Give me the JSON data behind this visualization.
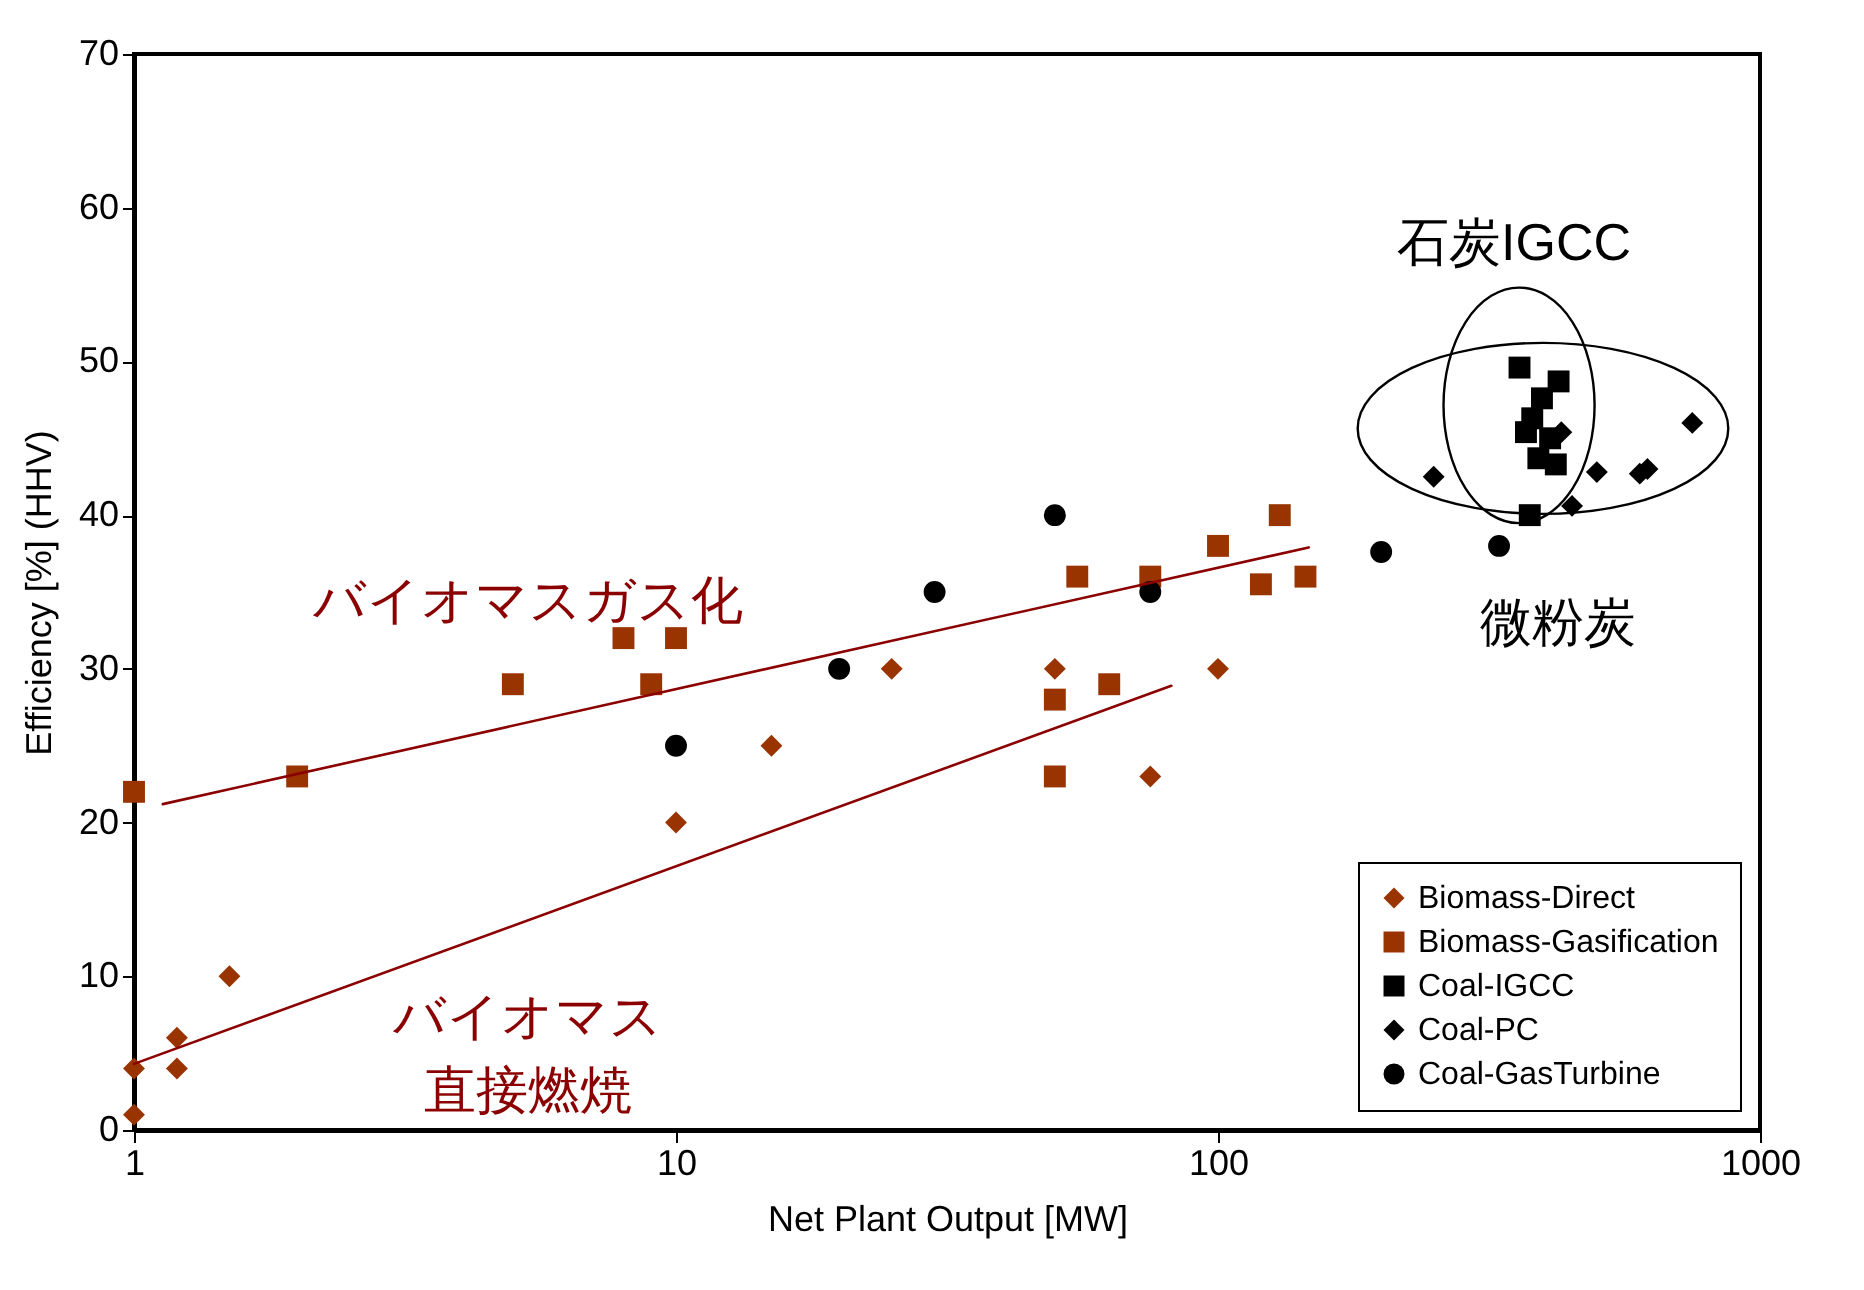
{
  "chart_data": {
    "type": "scatter",
    "xlabel": "Net Plant Output [MW]",
    "ylabel": "Efficiency [%] (HHV)",
    "log": "x",
    "xlim": [
      1,
      1000
    ],
    "xticks": [
      1,
      10,
      100,
      1000
    ],
    "ylim": [
      0,
      70
    ],
    "yticks": [
      0,
      10,
      20,
      30,
      40,
      50,
      60,
      70
    ],
    "grid": false,
    "legend": "bottom right",
    "series": [
      {
        "name": "Biomass-Direct",
        "color": "#993300",
        "marker": "diamond",
        "x": [
          1,
          1,
          1.2,
          1.2,
          1.5,
          10,
          15,
          25,
          50,
          75,
          100
        ],
        "values": [
          1,
          4,
          6,
          4,
          10,
          20,
          25,
          30,
          30,
          23,
          30
        ]
      },
      {
        "name": "Biomass-Gasification",
        "color": "#993300",
        "marker": "square",
        "x": [
          1,
          2,
          5,
          8,
          9,
          10,
          50,
          50,
          55,
          63,
          75,
          100,
          120,
          130,
          145
        ],
        "values": [
          22,
          23,
          29,
          32,
          29,
          32,
          28,
          23,
          36,
          29,
          36,
          38,
          35.5,
          40,
          36
        ]
      },
      {
        "name": "Coal-IGCC",
        "color": "#000000",
        "marker": "square",
        "x": [
          360,
          425,
          396,
          380,
          370,
          410,
          390,
          420,
          376
        ],
        "values": [
          49.6,
          48.7,
          47.6,
          46.3,
          45.4,
          45,
          43.7,
          43.3,
          40
        ]
      },
      {
        "name": "Coal-PC",
        "color": "#000000",
        "marker": "diamond",
        "x": [
          250,
          430,
          500,
          600,
          620,
          450,
          750
        ],
        "values": [
          42.5,
          45.4,
          42.8,
          42.7,
          43,
          40.6,
          46
        ]
      },
      {
        "name": "Coal-GasTurbine",
        "color": "#000000",
        "marker": "circle",
        "x": [
          10,
          20,
          30,
          50,
          75,
          200,
          330
        ],
        "values": [
          25,
          30,
          35,
          40,
          35,
          37.6,
          38
        ]
      },
      {
        "type": "line",
        "color": "#8b0000",
        "x": [
          1.13,
          147
        ],
        "values": [
          21.2,
          37.9
        ]
      },
      {
        "type": "line",
        "color": "#8b0000",
        "x": [
          1,
          82
        ],
        "values": [
          4.3,
          28.9
        ]
      }
    ],
    "annotations": [
      "石炭IGCC",
      "微粉炭",
      "バイオマスガス化",
      "バイオマス",
      "直接燃焼"
    ]
  }
}
